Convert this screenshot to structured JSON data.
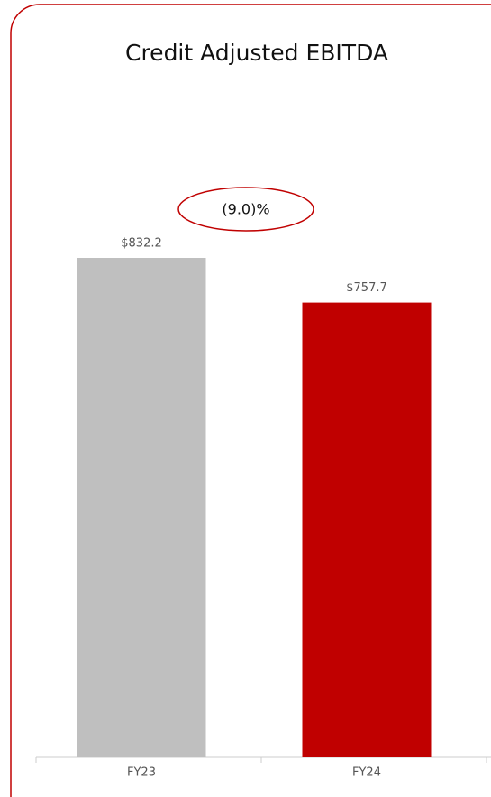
{
  "chart_data": {
    "type": "bar",
    "title": "Credit Adjusted EBITDA",
    "categories": [
      "FY23",
      "FY24"
    ],
    "values": [
      832.2,
      757.7
    ],
    "value_labels": [
      "$832.2",
      "$757.7"
    ],
    "colors": [
      "#bfbfbf",
      "#c00000"
    ],
    "annotation": "(9.0)%"
  }
}
